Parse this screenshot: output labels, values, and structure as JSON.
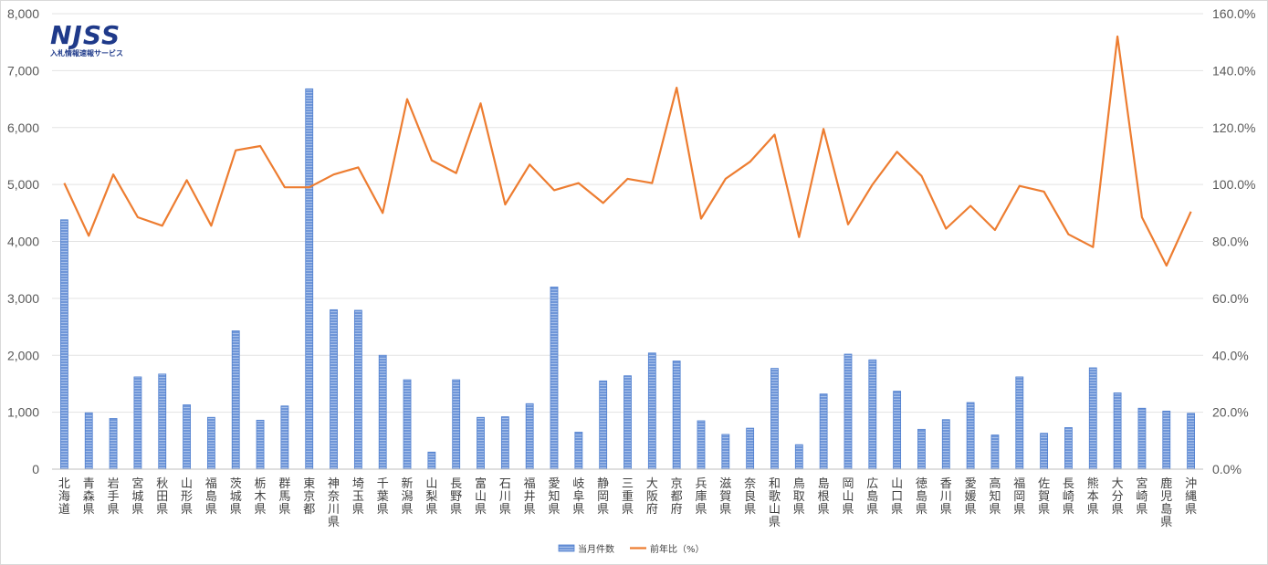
{
  "logo": {
    "main": "NJSS",
    "sub": "入札情報速報サービス"
  },
  "chart_data": {
    "type": "bar",
    "categories": [
      "北海道",
      "青森県",
      "岩手県",
      "宮城県",
      "秋田県",
      "山形県",
      "福島県",
      "茨城県",
      "栃木県",
      "群馬県",
      "東京都",
      "神奈川県",
      "埼玉県",
      "千葉県",
      "新潟県",
      "山梨県",
      "長野県",
      "富山県",
      "石川県",
      "福井県",
      "愛知県",
      "岐阜県",
      "静岡県",
      "三重県",
      "大阪府",
      "京都府",
      "兵庫県",
      "滋賀県",
      "奈良県",
      "和歌山県",
      "鳥取県",
      "島根県",
      "岡山県",
      "広島県",
      "山口県",
      "徳島県",
      "香川県",
      "愛媛県",
      "高知県",
      "福岡県",
      "佐賀県",
      "長崎県",
      "熊本県",
      "大分県",
      "宮崎県",
      "鹿児島県",
      "沖縄県"
    ],
    "series": [
      {
        "name": "当月件数",
        "type": "bar",
        "axis": "left",
        "color": "#6f96d8",
        "values": [
          4380,
          990,
          890,
          1620,
          1670,
          1130,
          910,
          2430,
          860,
          1110,
          6680,
          2800,
          2790,
          2000,
          1570,
          300,
          1570,
          910,
          920,
          1150,
          3200,
          650,
          1550,
          1640,
          2040,
          1900,
          850,
          610,
          720,
          1770,
          430,
          1320,
          2020,
          1920,
          1370,
          700,
          870,
          1170,
          600,
          1620,
          630,
          730,
          1780,
          1340,
          1070,
          1020,
          980
        ]
      },
      {
        "name": "前年比（%）",
        "type": "line",
        "axis": "right",
        "color": "#ed7d31",
        "values": [
          100.5,
          82.0,
          103.5,
          88.5,
          85.5,
          101.5,
          85.5,
          112.0,
          113.5,
          99.0,
          99.0,
          103.5,
          106.0,
          90.0,
          130.0,
          108.5,
          104.0,
          128.5,
          93.0,
          107.0,
          98.0,
          100.5,
          93.5,
          102.0,
          100.5,
          134.0,
          88.0,
          102.0,
          108.0,
          117.5,
          81.5,
          119.5,
          86.0,
          100.0,
          111.5,
          103.0,
          84.5,
          92.5,
          84.0,
          99.5,
          97.5,
          82.5,
          78.0,
          152.0,
          88.5,
          71.5,
          90.5
        ]
      }
    ],
    "ylim_left": [
      0,
      8000
    ],
    "ylim_right": [
      0,
      160
    ],
    "yticks_left": [
      "0",
      "1,000",
      "2,000",
      "3,000",
      "4,000",
      "5,000",
      "6,000",
      "7,000",
      "8,000"
    ],
    "yticks_right": [
      "0.0%",
      "20.0%",
      "40.0%",
      "60.0%",
      "80.0%",
      "100.0%",
      "120.0%",
      "140.0%",
      "160.0%"
    ],
    "grid": true,
    "legend_position": "bottom-center"
  }
}
